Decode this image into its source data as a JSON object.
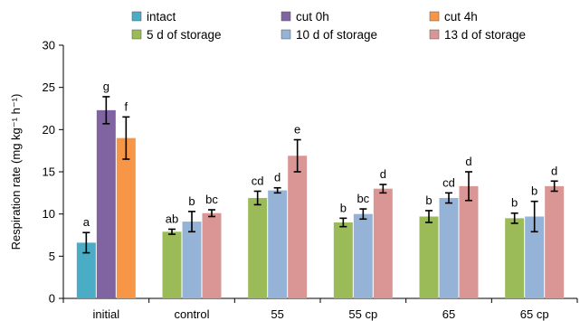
{
  "chart_data": {
    "type": "bar",
    "title": "",
    "xlabel": "",
    "ylabel": "Respiration rate (mg kg⁻¹ h⁻¹)",
    "ylim": [
      0,
      30
    ],
    "yticks": [
      0,
      5,
      10,
      15,
      20,
      25,
      30
    ],
    "grid": false,
    "legend_position": "top",
    "categories": [
      "initial",
      "control",
      "55",
      "55 cp",
      "65",
      "65 cp"
    ],
    "series": [
      {
        "name": "intact",
        "color": "#4BACC6",
        "values": [
          6.6,
          null,
          null,
          null,
          null,
          null
        ],
        "errors": [
          1.2,
          null,
          null,
          null,
          null,
          null
        ],
        "labels": [
          "a",
          null,
          null,
          null,
          null,
          null
        ]
      },
      {
        "name": "cut 0h",
        "color": "#8064A2",
        "values": [
          22.3,
          null,
          null,
          null,
          null,
          null
        ],
        "errors": [
          1.6,
          null,
          null,
          null,
          null,
          null
        ],
        "labels": [
          "g",
          null,
          null,
          null,
          null,
          null
        ]
      },
      {
        "name": "cut 4h",
        "color": "#F79646",
        "values": [
          19.0,
          null,
          null,
          null,
          null,
          null
        ],
        "errors": [
          2.5,
          null,
          null,
          null,
          null,
          null
        ],
        "labels": [
          "f",
          null,
          null,
          null,
          null,
          null
        ]
      },
      {
        "name": "5 d of storage",
        "color": "#9BBB59",
        "values": [
          null,
          7.9,
          11.9,
          9.0,
          9.7,
          9.5
        ],
        "errors": [
          null,
          0.3,
          0.8,
          0.5,
          0.7,
          0.6
        ],
        "labels": [
          null,
          "ab",
          "cd",
          "b",
          "b",
          "b"
        ]
      },
      {
        "name": "10 d of storage",
        "color": "#95B3D7",
        "values": [
          null,
          9.1,
          12.8,
          10.0,
          11.9,
          9.7
        ],
        "errors": [
          null,
          1.2,
          0.3,
          0.6,
          0.6,
          1.8
        ],
        "labels": [
          null,
          "b",
          "d",
          "bc",
          "cd",
          "b"
        ]
      },
      {
        "name": "13 d of storage",
        "color": "#D99694",
        "values": [
          null,
          10.1,
          16.9,
          13.0,
          13.3,
          13.3
        ],
        "errors": [
          null,
          0.4,
          1.9,
          0.5,
          1.7,
          0.6
        ],
        "labels": [
          null,
          "bc",
          "e",
          "d",
          "d",
          "d"
        ]
      }
    ]
  }
}
